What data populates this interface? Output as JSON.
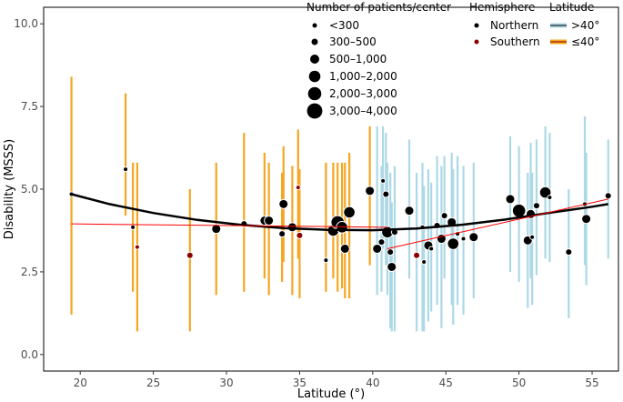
{
  "chart_data": {
    "type": "scatter",
    "xlabel": "Latitude (°)",
    "ylabel": "Disability (MSSS)",
    "xlim": [
      17.5,
      56.8
    ],
    "ylim": [
      -0.5,
      10.5
    ],
    "x_ticks": [
      20,
      25,
      30,
      35,
      40,
      45,
      50,
      55
    ],
    "y_ticks": [
      0.0,
      2.5,
      5.0,
      7.5,
      10.0
    ],
    "x_tick_labels": [
      "20",
      "25",
      "30",
      "35",
      "40",
      "45",
      "50",
      "55"
    ],
    "y_tick_labels": [
      "0.0",
      "2.5",
      "5.0",
      "7.5",
      "10.0"
    ],
    "grid": false,
    "legend": {
      "placement": "top-right",
      "size_title": "Number of patients/center",
      "size_entries": [
        "<300",
        "300–500",
        "500–1,000",
        "1,000–2,000",
        "2,000–3,000",
        "3,000–4,000"
      ],
      "hemisphere_title": "Hemisphere",
      "hemisphere_entries": [
        "Northern",
        "Southern"
      ],
      "latitude_title": "Latitude",
      "latitude_entries": [
        ">40°",
        "≤40°"
      ]
    },
    "colors": {
      "high_latitude": "#add8e6",
      "low_latitude": "#f5a623",
      "southern_point": "#8b0000",
      "northern_point": "#000000",
      "fit_curve": "#000000",
      "linear_fit": "#ff0000"
    },
    "centers": [
      {
        "lat": 19.4,
        "msss": 4.85,
        "lo": 1.2,
        "hi": 8.4,
        "size": 1,
        "hemisphere": "Northern"
      },
      {
        "lat": 23.1,
        "msss": 5.6,
        "lo": 4.2,
        "hi": 7.9,
        "size": 1,
        "hemisphere": "Northern"
      },
      {
        "lat": 23.6,
        "msss": 3.85,
        "lo": 1.9,
        "hi": 5.8,
        "size": 1,
        "hemisphere": "Northern"
      },
      {
        "lat": 23.9,
        "msss": 3.25,
        "lo": 0.7,
        "hi": 5.8,
        "size": 1,
        "hemisphere": "Southern"
      },
      {
        "lat": 27.5,
        "msss": 3.0,
        "lo": 0.7,
        "hi": 5.0,
        "size": 2,
        "hemisphere": "Southern"
      },
      {
        "lat": 29.3,
        "msss": 3.8,
        "lo": 1.8,
        "hi": 5.8,
        "size": 3,
        "hemisphere": "Northern"
      },
      {
        "lat": 31.2,
        "msss": 3.95,
        "lo": 1.9,
        "hi": 6.7,
        "size": 2,
        "hemisphere": "Northern"
      },
      {
        "lat": 32.6,
        "msss": 4.05,
        "lo": 2.3,
        "hi": 6.1,
        "size": 3,
        "hemisphere": "Northern"
      },
      {
        "lat": 32.9,
        "msss": 4.05,
        "lo": 1.8,
        "hi": 5.8,
        "size": 3,
        "hemisphere": "Northern"
      },
      {
        "lat": 33.8,
        "msss": 3.65,
        "lo": 2.2,
        "hi": 5.5,
        "size": 2,
        "hemisphere": "Northern"
      },
      {
        "lat": 33.9,
        "msss": 4.55,
        "lo": 2.8,
        "hi": 6.3,
        "size": 3,
        "hemisphere": "Northern"
      },
      {
        "lat": 34.5,
        "msss": 3.85,
        "lo": 1.8,
        "hi": 5.7,
        "size": 3,
        "hemisphere": "Northern"
      },
      {
        "lat": 34.9,
        "msss": 5.05,
        "lo": 2.9,
        "hi": 6.8,
        "size": 1,
        "hemisphere": "Southern"
      },
      {
        "lat": 35.0,
        "msss": 3.6,
        "lo": 1.7,
        "hi": 5.6,
        "size": 2,
        "hemisphere": "Southern"
      },
      {
        "lat": 36.8,
        "msss": 2.85,
        "lo": 1.9,
        "hi": 5.8,
        "size": 1,
        "hemisphere": "Northern"
      },
      {
        "lat": 37.3,
        "msss": 3.75,
        "lo": 2.3,
        "hi": 5.8,
        "size": 4,
        "hemisphere": "Northern"
      },
      {
        "lat": 37.6,
        "msss": 4.0,
        "lo": 1.9,
        "hi": 5.8,
        "size": 5,
        "hemisphere": "Northern"
      },
      {
        "lat": 37.9,
        "msss": 3.85,
        "lo": 2.0,
        "hi": 5.8,
        "size": 4,
        "hemisphere": "Northern"
      },
      {
        "lat": 38.1,
        "msss": 3.2,
        "lo": 1.7,
        "hi": 5.8,
        "size": 3,
        "hemisphere": "Northern"
      },
      {
        "lat": 38.4,
        "msss": 4.3,
        "lo": 1.7,
        "hi": 6.1,
        "size": 4,
        "hemisphere": "Northern"
      },
      {
        "lat": 39.8,
        "msss": 4.95,
        "lo": 2.7,
        "hi": 6.9,
        "size": 3,
        "hemisphere": "Northern"
      },
      {
        "lat": 40.3,
        "msss": 3.2,
        "lo": 1.8,
        "hi": 6.9,
        "size": 3,
        "hemisphere": "Northern"
      },
      {
        "lat": 40.6,
        "msss": 3.4,
        "lo": 1.9,
        "hi": 5.7,
        "size": 2,
        "hemisphere": "Northern"
      },
      {
        "lat": 40.7,
        "msss": 5.25,
        "lo": 3.2,
        "hi": 6.9,
        "size": 1,
        "hemisphere": "Northern"
      },
      {
        "lat": 40.9,
        "msss": 4.85,
        "lo": 2.7,
        "hi": 6.7,
        "size": 2,
        "hemisphere": "Northern"
      },
      {
        "lat": 41.0,
        "msss": 3.7,
        "lo": 1.8,
        "hi": 5.8,
        "size": 4,
        "hemisphere": "Northern"
      },
      {
        "lat": 41.3,
        "msss": 2.65,
        "lo": 0.7,
        "hi": 4.6,
        "size": 3,
        "hemisphere": "Northern"
      },
      {
        "lat": 41.5,
        "msss": 3.7,
        "lo": 0.7,
        "hi": 5.7,
        "size": 2,
        "hemisphere": "Northern"
      },
      {
        "lat": 41.2,
        "msss": 3.1,
        "lo": 0.8,
        "hi": 5.5,
        "size": 2,
        "hemisphere": "Northern"
      },
      {
        "lat": 42.5,
        "msss": 4.35,
        "lo": 2.3,
        "hi": 6.5,
        "size": 3,
        "hemisphere": "Northern"
      },
      {
        "lat": 43.0,
        "msss": 3.0,
        "lo": 0.7,
        "hi": 5.5,
        "size": 2,
        "hemisphere": "Southern"
      },
      {
        "lat": 43.4,
        "msss": 3.85,
        "lo": 0.7,
        "hi": 5.8,
        "size": 1,
        "hemisphere": "Northern"
      },
      {
        "lat": 43.5,
        "msss": 2.8,
        "lo": 0.7,
        "hi": 5.1,
        "size": 1,
        "hemisphere": "Northern"
      },
      {
        "lat": 43.8,
        "msss": 3.3,
        "lo": 1.0,
        "hi": 5.6,
        "size": 3,
        "hemisphere": "Northern"
      },
      {
        "lat": 44.0,
        "msss": 3.2,
        "lo": 1.3,
        "hi": 5.2,
        "size": 1,
        "hemisphere": "Northern"
      },
      {
        "lat": 44.4,
        "msss": 3.9,
        "lo": 1.5,
        "hi": 6.0,
        "size": 2,
        "hemisphere": "Northern"
      },
      {
        "lat": 44.7,
        "msss": 3.5,
        "lo": 0.8,
        "hi": 5.7,
        "size": 3,
        "hemisphere": "Northern"
      },
      {
        "lat": 44.9,
        "msss": 4.2,
        "lo": 2.3,
        "hi": 6.0,
        "size": 2,
        "hemisphere": "Northern"
      },
      {
        "lat": 45.4,
        "msss": 4.0,
        "lo": 1.5,
        "hi": 6.1,
        "size": 3,
        "hemisphere": "Northern"
      },
      {
        "lat": 45.5,
        "msss": 3.35,
        "lo": 0.9,
        "hi": 5.6,
        "size": 4,
        "hemisphere": "Northern"
      },
      {
        "lat": 45.8,
        "msss": 3.65,
        "lo": 1.5,
        "hi": 6.0,
        "size": 1,
        "hemisphere": "Northern"
      },
      {
        "lat": 46.2,
        "msss": 3.5,
        "lo": 1.2,
        "hi": 5.7,
        "size": 1,
        "hemisphere": "Northern"
      },
      {
        "lat": 46.9,
        "msss": 3.55,
        "lo": 1.7,
        "hi": 5.8,
        "size": 3,
        "hemisphere": "Northern"
      },
      {
        "lat": 49.4,
        "msss": 4.7,
        "lo": 2.5,
        "hi": 6.6,
        "size": 3,
        "hemisphere": "Northern"
      },
      {
        "lat": 50.0,
        "msss": 4.35,
        "lo": 2.2,
        "hi": 6.3,
        "size": 5,
        "hemisphere": "Northern"
      },
      {
        "lat": 50.6,
        "msss": 3.45,
        "lo": 1.4,
        "hi": 5.5,
        "size": 3,
        "hemisphere": "Northern"
      },
      {
        "lat": 50.9,
        "msss": 3.55,
        "lo": 1.5,
        "hi": 5.5,
        "size": 1,
        "hemisphere": "Northern"
      },
      {
        "lat": 50.8,
        "msss": 4.25,
        "lo": 2.3,
        "hi": 6.4,
        "size": 3,
        "hemisphere": "Northern"
      },
      {
        "lat": 51.2,
        "msss": 4.5,
        "lo": 2.4,
        "hi": 6.5,
        "size": 2,
        "hemisphere": "Northern"
      },
      {
        "lat": 51.8,
        "msss": 4.9,
        "lo": 2.9,
        "hi": 6.9,
        "size": 4,
        "hemisphere": "Northern"
      },
      {
        "lat": 52.1,
        "msss": 4.75,
        "lo": 2.8,
        "hi": 6.7,
        "size": 1,
        "hemisphere": "Northern"
      },
      {
        "lat": 53.4,
        "msss": 3.1,
        "lo": 1.1,
        "hi": 5.0,
        "size": 2,
        "hemisphere": "Northern"
      },
      {
        "lat": 54.5,
        "msss": 4.55,
        "lo": 2.7,
        "hi": 7.2,
        "size": 1,
        "hemisphere": "Northern"
      },
      {
        "lat": 54.6,
        "msss": 4.1,
        "lo": 2.1,
        "hi": 6.1,
        "size": 3,
        "hemisphere": "Northern"
      },
      {
        "lat": 56.1,
        "msss": 4.8,
        "lo": 2.9,
        "hi": 6.5,
        "size": 2,
        "hemisphere": "Northern"
      }
    ],
    "quadratic_fit": {
      "x": [
        19.4,
        22,
        25,
        28,
        31,
        34,
        37,
        40,
        43,
        46,
        49,
        52,
        55,
        56.1
      ],
      "y": [
        4.85,
        4.55,
        4.28,
        4.07,
        3.92,
        3.82,
        3.77,
        3.76,
        3.81,
        3.92,
        4.08,
        4.28,
        4.47,
        4.55
      ]
    },
    "linear_fits": [
      {
        "x": [
          19.4,
          41.0
        ],
        "y": [
          3.95,
          3.85
        ]
      },
      {
        "x": [
          41.0,
          56.1
        ],
        "y": [
          3.2,
          4.7
        ]
      }
    ]
  }
}
